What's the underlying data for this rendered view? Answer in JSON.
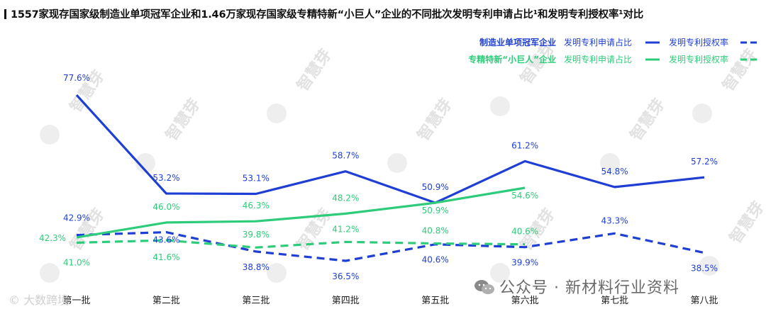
{
  "chart_data": {
    "type": "line",
    "title": "1557家现存国家级制造业单项冠军企业和1.46万家现存国家级专精特新“小巨人”企业的不同批次发明专利申请占比¹和发明专利授权率¹对比",
    "categories": [
      "第一批",
      "第二批",
      "第三批",
      "第四批",
      "第五批",
      "第六批",
      "第七批",
      "第八批"
    ],
    "ylim": [
      30,
      85
    ],
    "groups": [
      {
        "name": "制造业单项冠军企业",
        "color": "#1f3fd4"
      },
      {
        "name": "专精特新“小巨人”企业",
        "color": "#2ecc7a"
      }
    ],
    "legend_labels": {
      "solid": "发明专利申请占比",
      "dashed": "发明专利授权率"
    },
    "series": [
      {
        "name": "制造业单项冠军企业 发明专利申请占比",
        "group": 0,
        "style": "solid",
        "values": [
          77.6,
          53.2,
          53.1,
          58.7,
          50.9,
          61.2,
          54.8,
          57.2
        ]
      },
      {
        "name": "制造业单项冠军企业 发明专利授权率",
        "group": 0,
        "style": "dashed",
        "values": [
          42.9,
          43.6,
          38.8,
          36.5,
          40.6,
          39.9,
          43.3,
          38.5
        ]
      },
      {
        "name": "专精特新“小巨人”企业 发明专利申请占比",
        "group": 1,
        "style": "solid",
        "values": [
          42.3,
          46.0,
          46.3,
          48.2,
          50.9,
          54.6,
          null,
          null
        ]
      },
      {
        "name": "专精特新“小巨人”企业 发明专利授权率",
        "group": 1,
        "style": "dashed",
        "values": [
          41.0,
          41.6,
          39.8,
          41.2,
          40.8,
          40.6,
          null,
          null
        ]
      }
    ],
    "value_labels": [
      {
        "series": 0,
        "index": 0,
        "text": "77.6%",
        "color": "#1f3fd4"
      },
      {
        "series": 0,
        "index": 1,
        "text": "53.2%",
        "color": "#1f3fd4"
      },
      {
        "series": 0,
        "index": 2,
        "text": "53.1%",
        "color": "#1f3fd4"
      },
      {
        "series": 0,
        "index": 3,
        "text": "58.7%",
        "color": "#1f3fd4"
      },
      {
        "series": 0,
        "index": 4,
        "text": "50.9%",
        "color": "#1f3fd4"
      },
      {
        "series": 0,
        "index": 5,
        "text": "61.2%",
        "color": "#1f3fd4"
      },
      {
        "series": 0,
        "index": 6,
        "text": "54.8%",
        "color": "#1f3fd4"
      },
      {
        "series": 0,
        "index": 7,
        "text": "57.2%",
        "color": "#1f3fd4"
      },
      {
        "series": 1,
        "index": 0,
        "text": "42.9%",
        "color": "#1f3fd4"
      },
      {
        "series": 1,
        "index": 1,
        "text": "43.6%",
        "color": "#1f3fd4"
      },
      {
        "series": 1,
        "index": 2,
        "text": "38.8%",
        "color": "#1f3fd4"
      },
      {
        "series": 1,
        "index": 3,
        "text": "36.5%",
        "color": "#1f3fd4"
      },
      {
        "series": 1,
        "index": 4,
        "text": "40.6%",
        "color": "#1f3fd4"
      },
      {
        "series": 1,
        "index": 5,
        "text": "39.9%",
        "color": "#1f3fd4"
      },
      {
        "series": 1,
        "index": 6,
        "text": "43.3%",
        "color": "#1f3fd4"
      },
      {
        "series": 1,
        "index": 7,
        "text": "38.5%",
        "color": "#1f3fd4"
      },
      {
        "series": 2,
        "index": 0,
        "text": "42.3%",
        "color": "#2ecc7a"
      },
      {
        "series": 2,
        "index": 1,
        "text": "46.0%",
        "color": "#2ecc7a"
      },
      {
        "series": 2,
        "index": 2,
        "text": "46.3%",
        "color": "#2ecc7a"
      },
      {
        "series": 2,
        "index": 3,
        "text": "48.2%",
        "color": "#2ecc7a"
      },
      {
        "series": 2,
        "index": 4,
        "text": "50.9%",
        "color": "#2ecc7a"
      },
      {
        "series": 2,
        "index": 5,
        "text": "54.6%",
        "color": "#2ecc7a"
      },
      {
        "series": 3,
        "index": 0,
        "text": "41.0%",
        "color": "#2ecc7a"
      },
      {
        "series": 3,
        "index": 1,
        "text": "41.6%",
        "color": "#2ecc7a"
      },
      {
        "series": 3,
        "index": 2,
        "text": "39.8%",
        "color": "#2ecc7a"
      },
      {
        "series": 3,
        "index": 3,
        "text": "41.2%",
        "color": "#2ecc7a"
      },
      {
        "series": 3,
        "index": 4,
        "text": "40.8%",
        "color": "#2ecc7a"
      },
      {
        "series": 3,
        "index": 5,
        "text": "40.6%",
        "color": "#2ecc7a"
      }
    ]
  },
  "watermark_text": "智慧芽",
  "footer": {
    "left_text": "© 大数跨境",
    "right_text": "公众号 · 新材料行业资料"
  }
}
